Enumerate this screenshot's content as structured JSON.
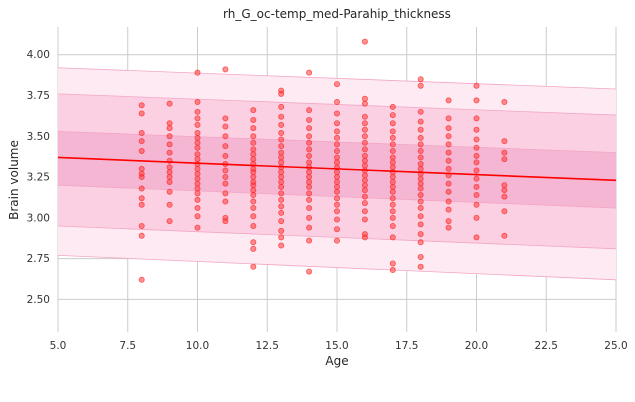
{
  "chart_data": {
    "type": "scatter",
    "title": "rh_G_oc-temp_med-Parahip_thickness",
    "xlabel": "Age",
    "ylabel": "Brain volume",
    "xlim": [
      5,
      25
    ],
    "ylim": [
      2.3,
      4.17
    ],
    "x_ticks": [
      "5.0",
      "7.5",
      "10.0",
      "12.5",
      "15.0",
      "17.5",
      "20.0",
      "22.5",
      "25.0"
    ],
    "y_ticks": [
      "2.50",
      "2.75",
      "3.00",
      "3.25",
      "3.50",
      "3.75",
      "4.00"
    ],
    "grid": true,
    "colors": {
      "points": "#ff2a2a",
      "fit_line": "#ff0000",
      "band_inner": "#f4b6d2",
      "band_middle": "#fbd0e2",
      "band_outer": "#fdeaf2",
      "band_edge": "#f3a6c6",
      "grid": "#cccccc"
    },
    "fit_line": {
      "x": [
        5,
        25
      ],
      "y": [
        3.37,
        3.23
      ]
    },
    "bands": [
      {
        "level": "outer",
        "x": [
          5,
          25
        ],
        "lower": [
          2.77,
          2.62
        ],
        "upper": [
          3.92,
          3.79
        ]
      },
      {
        "level": "middle",
        "x": [
          5,
          25
        ],
        "lower": [
          2.95,
          2.81
        ],
        "upper": [
          3.76,
          3.63
        ]
      },
      {
        "level": "inner",
        "x": [
          5,
          25
        ],
        "lower": [
          3.2,
          3.06
        ],
        "upper": [
          3.53,
          3.4
        ]
      }
    ],
    "series": [
      {
        "points": [
          [
            8,
            3.69
          ],
          [
            8,
            3.64
          ],
          [
            8,
            3.52
          ],
          [
            8,
            3.47
          ],
          [
            8,
            3.41
          ],
          [
            8,
            3.3
          ],
          [
            8,
            3.27
          ],
          [
            8,
            3.25
          ],
          [
            8,
            3.18
          ],
          [
            8,
            3.12
          ],
          [
            8,
            3.08
          ],
          [
            8,
            2.95
          ],
          [
            8,
            2.89
          ],
          [
            8,
            2.62
          ],
          [
            9,
            3.7
          ],
          [
            9,
            3.58
          ],
          [
            9,
            3.55
          ],
          [
            9,
            3.5
          ],
          [
            9,
            3.45
          ],
          [
            9,
            3.4
          ],
          [
            9,
            3.35
          ],
          [
            9,
            3.31
          ],
          [
            9,
            3.28
          ],
          [
            9,
            3.25
          ],
          [
            9,
            3.22
          ],
          [
            9,
            3.16
          ],
          [
            9,
            3.08
          ],
          [
            9,
            2.98
          ],
          [
            10,
            3.89
          ],
          [
            10,
            3.71
          ],
          [
            10,
            3.65
          ],
          [
            10,
            3.61
          ],
          [
            10,
            3.57
          ],
          [
            10,
            3.52
          ],
          [
            10,
            3.49
          ],
          [
            10,
            3.46
          ],
          [
            10,
            3.43
          ],
          [
            10,
            3.39
          ],
          [
            10,
            3.36
          ],
          [
            10,
            3.33
          ],
          [
            10,
            3.3
          ],
          [
            10,
            3.27
          ],
          [
            10,
            3.24
          ],
          [
            10,
            3.21
          ],
          [
            10,
            3.18
          ],
          [
            10,
            3.15
          ],
          [
            10,
            3.11
          ],
          [
            10,
            3.06
          ],
          [
            10,
            3.01
          ],
          [
            10,
            2.94
          ],
          [
            11,
            3.91
          ],
          [
            11,
            3.61
          ],
          [
            11,
            3.56
          ],
          [
            11,
            3.5
          ],
          [
            11,
            3.44
          ],
          [
            11,
            3.38
          ],
          [
            11,
            3.33
          ],
          [
            11,
            3.29
          ],
          [
            11,
            3.25
          ],
          [
            11,
            3.21
          ],
          [
            11,
            3.15
          ],
          [
            11,
            3.1
          ],
          [
            11,
            3.0
          ],
          [
            11,
            2.98
          ],
          [
            12,
            3.66
          ],
          [
            12,
            3.6
          ],
          [
            12,
            3.55
          ],
          [
            12,
            3.5
          ],
          [
            12,
            3.46
          ],
          [
            12,
            3.42
          ],
          [
            12,
            3.39
          ],
          [
            12,
            3.36
          ],
          [
            12,
            3.33
          ],
          [
            12,
            3.3
          ],
          [
            12,
            3.28
          ],
          [
            12,
            3.25
          ],
          [
            12,
            3.22
          ],
          [
            12,
            3.2
          ],
          [
            12,
            3.17
          ],
          [
            12,
            3.14
          ],
          [
            12,
            3.1
          ],
          [
            12,
            3.06
          ],
          [
            12,
            3.01
          ],
          [
            12,
            2.95
          ],
          [
            12,
            2.85
          ],
          [
            12,
            2.81
          ],
          [
            12,
            2.7
          ],
          [
            13,
            3.78
          ],
          [
            13,
            3.76
          ],
          [
            13,
            3.68
          ],
          [
            13,
            3.62
          ],
          [
            13,
            3.57
          ],
          [
            13,
            3.52
          ],
          [
            13,
            3.48
          ],
          [
            13,
            3.44
          ],
          [
            13,
            3.4
          ],
          [
            13,
            3.37
          ],
          [
            13,
            3.34
          ],
          [
            13,
            3.31
          ],
          [
            13,
            3.28
          ],
          [
            13,
            3.25
          ],
          [
            13,
            3.22
          ],
          [
            13,
            3.19
          ],
          [
            13,
            3.15
          ],
          [
            13,
            3.11
          ],
          [
            13,
            3.07
          ],
          [
            13,
            3.03
          ],
          [
            13,
            2.98
          ],
          [
            13,
            2.92
          ],
          [
            13,
            2.88
          ],
          [
            13,
            2.83
          ],
          [
            14,
            3.89
          ],
          [
            14,
            3.66
          ],
          [
            14,
            3.6
          ],
          [
            14,
            3.55
          ],
          [
            14,
            3.5
          ],
          [
            14,
            3.46
          ],
          [
            14,
            3.42
          ],
          [
            14,
            3.38
          ],
          [
            14,
            3.34
          ],
          [
            14,
            3.31
          ],
          [
            14,
            3.28
          ],
          [
            14,
            3.25
          ],
          [
            14,
            3.22
          ],
          [
            14,
            3.19
          ],
          [
            14,
            3.15
          ],
          [
            14,
            3.11
          ],
          [
            14,
            3.06
          ],
          [
            14,
            3.0
          ],
          [
            14,
            2.94
          ],
          [
            14,
            2.86
          ],
          [
            14,
            2.67
          ],
          [
            15,
            3.82
          ],
          [
            15,
            3.71
          ],
          [
            15,
            3.64
          ],
          [
            15,
            3.58
          ],
          [
            15,
            3.53
          ],
          [
            15,
            3.49
          ],
          [
            15,
            3.45
          ],
          [
            15,
            3.41
          ],
          [
            15,
            3.37
          ],
          [
            15,
            3.34
          ],
          [
            15,
            3.31
          ],
          [
            15,
            3.28
          ],
          [
            15,
            3.25
          ],
          [
            15,
            3.22
          ],
          [
            15,
            3.19
          ],
          [
            15,
            3.16
          ],
          [
            15,
            3.12
          ],
          [
            15,
            3.08
          ],
          [
            15,
            3.04
          ],
          [
            15,
            2.99
          ],
          [
            15,
            2.93
          ],
          [
            15,
            2.86
          ],
          [
            16,
            4.08
          ],
          [
            16,
            3.73
          ],
          [
            16,
            3.7
          ],
          [
            16,
            3.62
          ],
          [
            16,
            3.58
          ],
          [
            16,
            3.54
          ],
          [
            16,
            3.5
          ],
          [
            16,
            3.46
          ],
          [
            16,
            3.42
          ],
          [
            16,
            3.38
          ],
          [
            16,
            3.35
          ],
          [
            16,
            3.32
          ],
          [
            16,
            3.29
          ],
          [
            16,
            3.26
          ],
          [
            16,
            3.23
          ],
          [
            16,
            3.2
          ],
          [
            16,
            3.17
          ],
          [
            16,
            3.13
          ],
          [
            16,
            3.09
          ],
          [
            16,
            3.04
          ],
          [
            16,
            2.99
          ],
          [
            16,
            2.9
          ],
          [
            16,
            2.88
          ],
          [
            17,
            3.68
          ],
          [
            17,
            3.63
          ],
          [
            17,
            3.58
          ],
          [
            17,
            3.53
          ],
          [
            17,
            3.49
          ],
          [
            17,
            3.45
          ],
          [
            17,
            3.41
          ],
          [
            17,
            3.37
          ],
          [
            17,
            3.34
          ],
          [
            17,
            3.31
          ],
          [
            17,
            3.28
          ],
          [
            17,
            3.25
          ],
          [
            17,
            3.22
          ],
          [
            17,
            3.19
          ],
          [
            17,
            3.16
          ],
          [
            17,
            3.12
          ],
          [
            17,
            3.08
          ],
          [
            17,
            3.04
          ],
          [
            17,
            3.0
          ],
          [
            17,
            2.95
          ],
          [
            17,
            2.88
          ],
          [
            17,
            2.72
          ],
          [
            17,
            2.68
          ],
          [
            18,
            3.85
          ],
          [
            18,
            3.81
          ],
          [
            18,
            3.65
          ],
          [
            18,
            3.59
          ],
          [
            18,
            3.54
          ],
          [
            18,
            3.49
          ],
          [
            18,
            3.45
          ],
          [
            18,
            3.41
          ],
          [
            18,
            3.37
          ],
          [
            18,
            3.33
          ],
          [
            18,
            3.3
          ],
          [
            18,
            3.27
          ],
          [
            18,
            3.24
          ],
          [
            18,
            3.21
          ],
          [
            18,
            3.18
          ],
          [
            18,
            3.14
          ],
          [
            18,
            3.1
          ],
          [
            18,
            3.06
          ],
          [
            18,
            3.01
          ],
          [
            18,
            2.96
          ],
          [
            18,
            2.9
          ],
          [
            18,
            2.85
          ],
          [
            18,
            2.76
          ],
          [
            18,
            2.7
          ],
          [
            19,
            3.72
          ],
          [
            19,
            3.61
          ],
          [
            19,
            3.55
          ],
          [
            19,
            3.5
          ],
          [
            19,
            3.45
          ],
          [
            19,
            3.4
          ],
          [
            19,
            3.35
          ],
          [
            19,
            3.3
          ],
          [
            19,
            3.26
          ],
          [
            19,
            3.21
          ],
          [
            19,
            3.16
          ],
          [
            19,
            3.1
          ],
          [
            19,
            3.05
          ],
          [
            19,
            2.98
          ],
          [
            19,
            2.94
          ],
          [
            20,
            3.81
          ],
          [
            20,
            3.72
          ],
          [
            20,
            3.61
          ],
          [
            20,
            3.54
          ],
          [
            20,
            3.48
          ],
          [
            20,
            3.43
          ],
          [
            20,
            3.38
          ],
          [
            20,
            3.34
          ],
          [
            20,
            3.29
          ],
          [
            20,
            3.24
          ],
          [
            20,
            3.19
          ],
          [
            20,
            3.14
          ],
          [
            20,
            3.08
          ],
          [
            20,
            3.0
          ],
          [
            20,
            2.88
          ],
          [
            21,
            3.71
          ],
          [
            21,
            3.47
          ],
          [
            21,
            3.4
          ],
          [
            21,
            3.36
          ],
          [
            21,
            3.2
          ],
          [
            21,
            3.17
          ],
          [
            21,
            3.13
          ],
          [
            21,
            3.04
          ],
          [
            21,
            2.89
          ]
        ]
      }
    ]
  }
}
